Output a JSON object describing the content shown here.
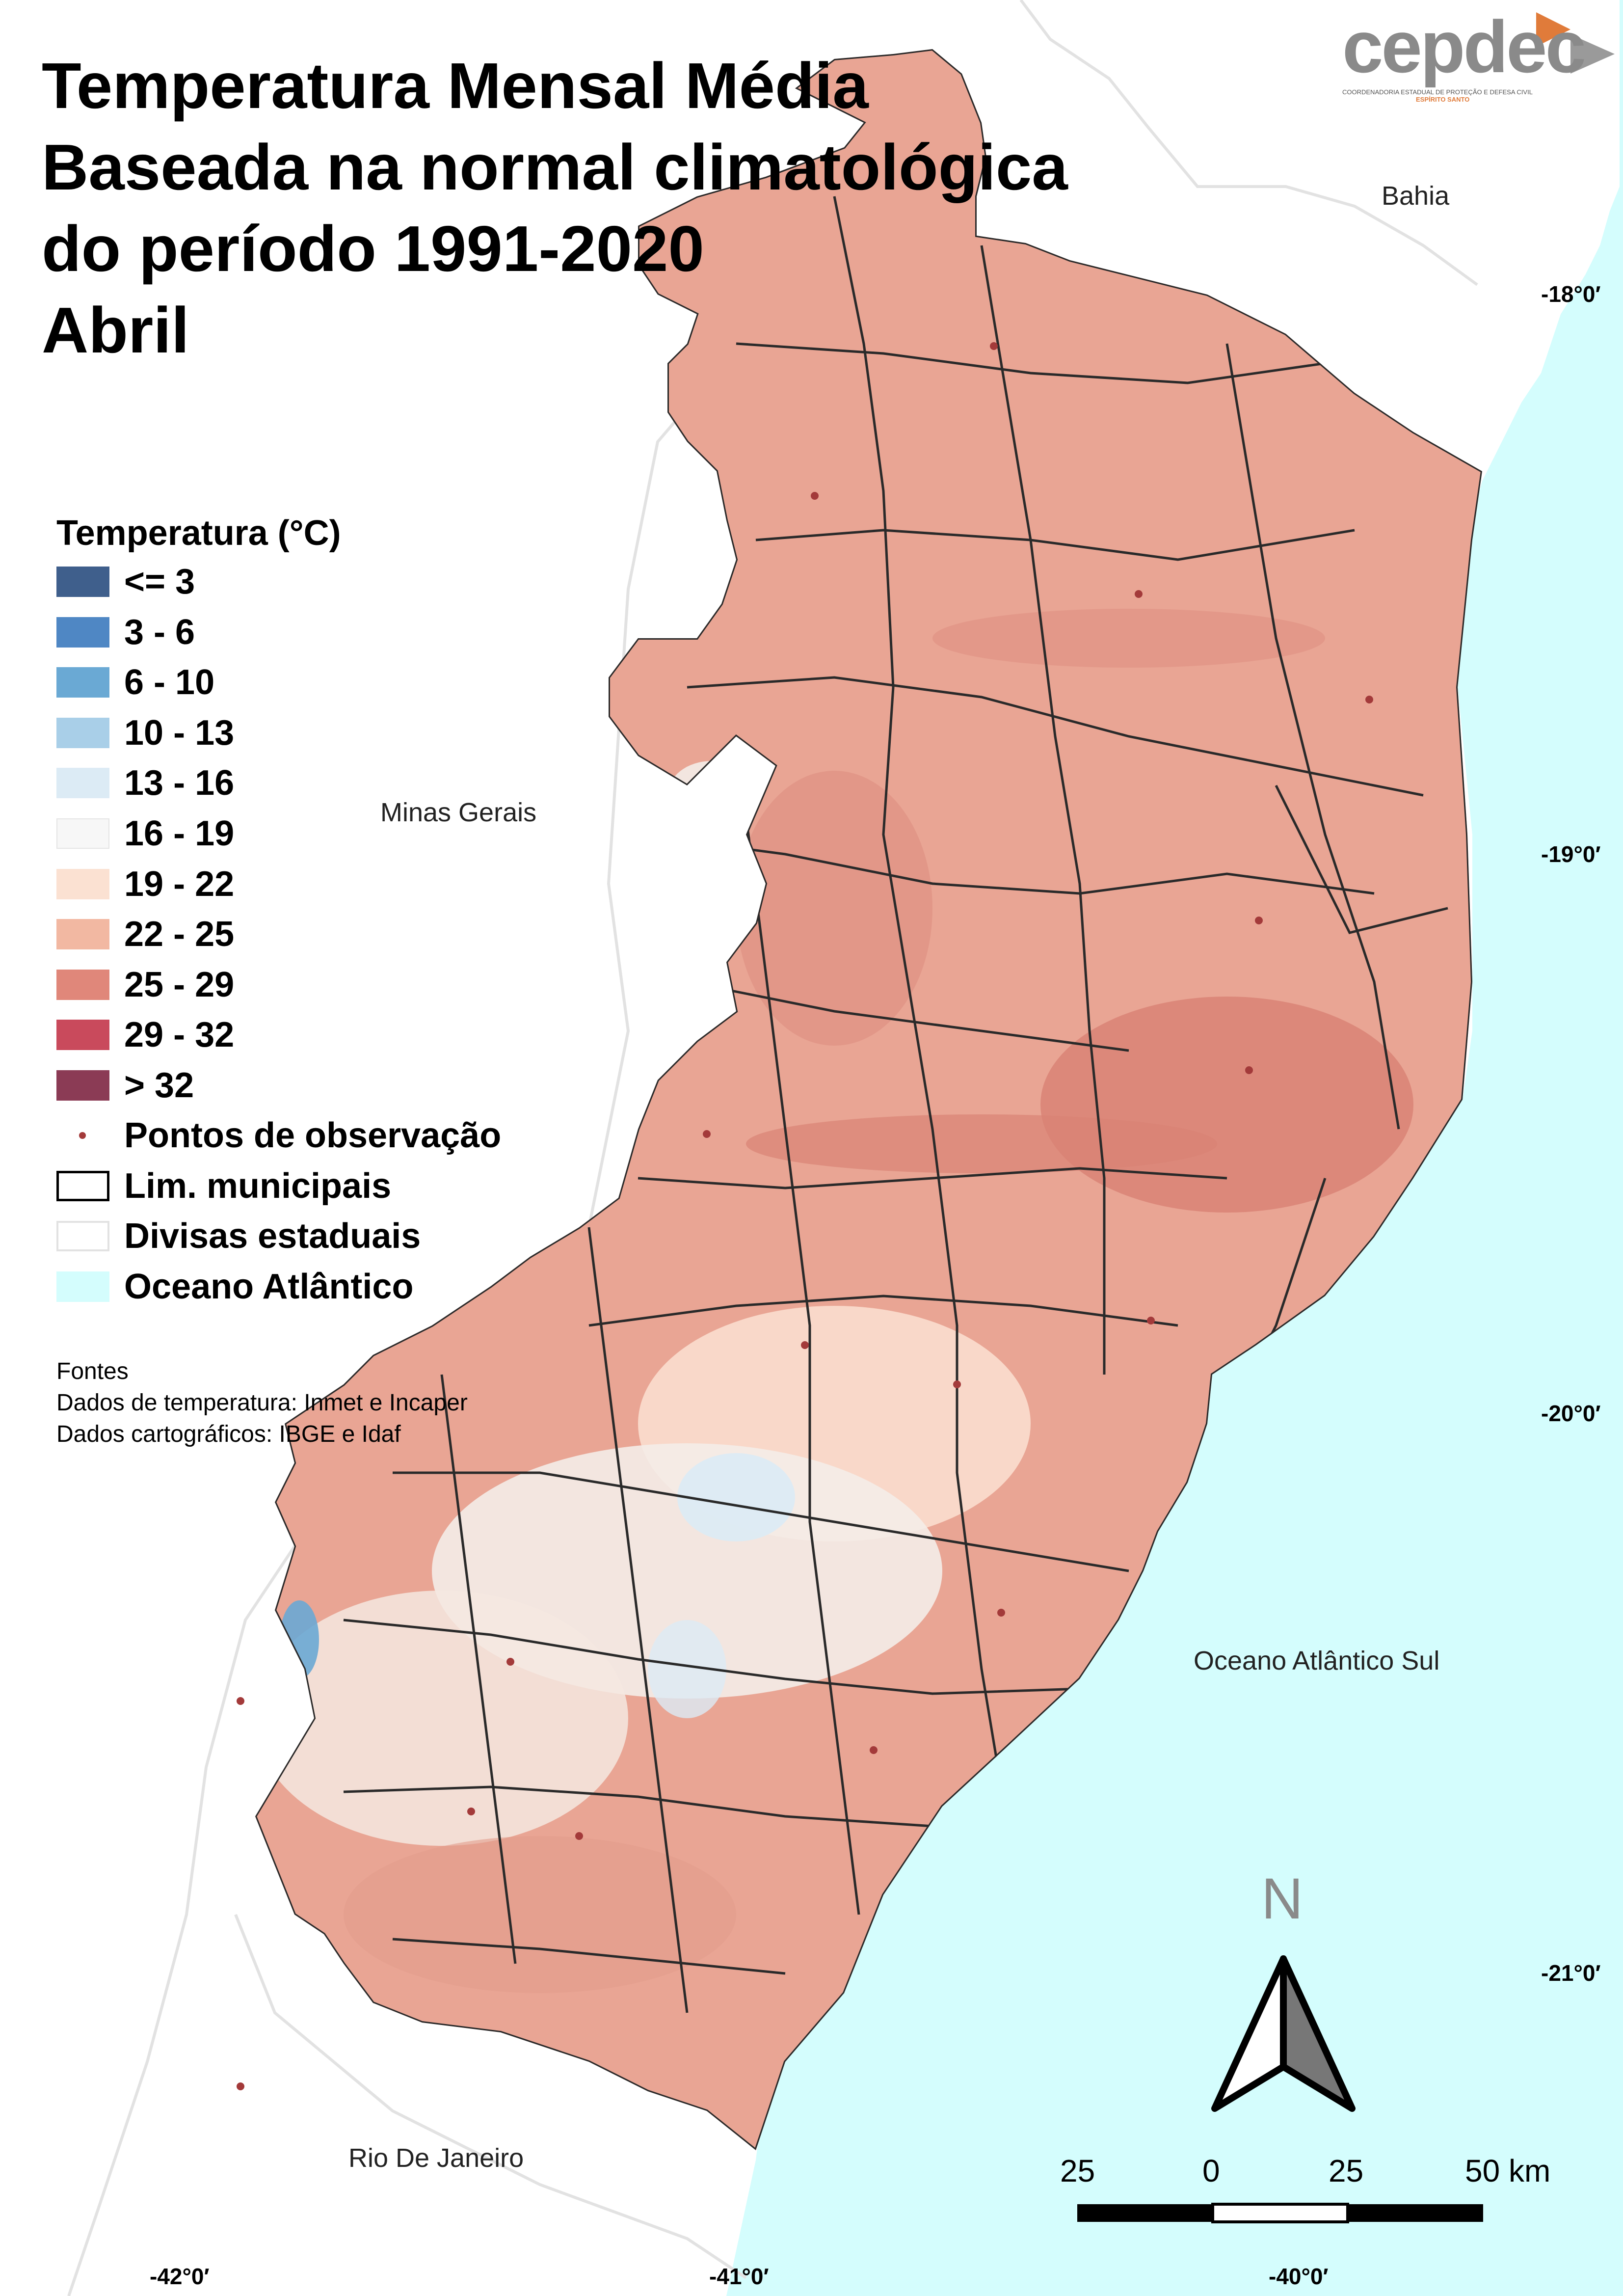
{
  "title": {
    "line1": "Temperatura Mensal Média",
    "line2": "Baseada na normal climatológica",
    "line3": "do período 1991-2020",
    "line4": "Abril"
  },
  "logo": {
    "text": "cepdec",
    "subtext": "COORDENADORIA ESTADUAL DE PROTEÇÃO E DEFESA CIVIL",
    "subtext2": "ESPÍRITO SANTO",
    "color": "#8a8a8a",
    "accent": "#e07b3a"
  },
  "legend": {
    "title": "Temperatura (°C)",
    "classes": [
      {
        "label": "<= 3",
        "color": "#3f5f8c"
      },
      {
        "label": "3 - 6",
        "color": "#4f87c4"
      },
      {
        "label": "6 - 10",
        "color": "#6aa9d4"
      },
      {
        "label": "10 - 13",
        "color": "#a9cfe8"
      },
      {
        "label": "13 - 16",
        "color": "#dcebf5"
      },
      {
        "label": "16 - 19",
        "color": "#f7f7f7"
      },
      {
        "label": "19 - 22",
        "color": "#fbe1d2"
      },
      {
        "label": "22 - 25",
        "color": "#f2b8a2"
      },
      {
        "label": "25 - 29",
        "color": "#e0877a"
      },
      {
        "label": "29 - 32",
        "color": "#c94a5c"
      },
      {
        "label": "> 32",
        "color": "#8b3b55"
      }
    ],
    "points_label": "Pontos de observação",
    "municipal_label": "Lim. municipais",
    "state_label": "Divisas estaduais",
    "ocean_label": "Oceano Atlântico",
    "ocean_color": "#d4fdfd"
  },
  "sources": {
    "line1": "Fontes",
    "line2": "Dados de temperatura: Inmet e Incaper",
    "line3": "Dados cartográficos: IBGE e Idaf"
  },
  "places": {
    "bahia": "Bahia",
    "minas": "Minas Gerais",
    "rio": "Rio De Janeiro",
    "ocean": "Oceano Atlântico Sul"
  },
  "latitudes": [
    "-18°0′",
    "-19°0′",
    "-20°0′",
    "-21°0′"
  ],
  "longitudes": [
    "-42°0′",
    "-41°0′",
    "-40°0′"
  ],
  "north": "N",
  "scale": {
    "labels": [
      "25",
      "0",
      "25",
      "50 km"
    ]
  }
}
